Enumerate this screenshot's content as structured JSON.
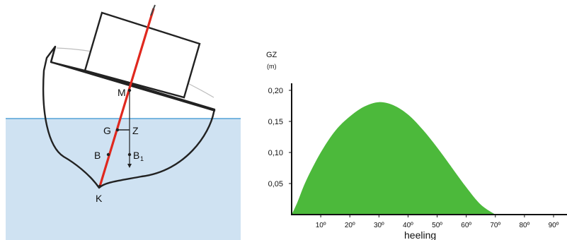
{
  "diagram": {
    "points": {
      "m": "M",
      "g": "G",
      "z": "Z",
      "b": "B",
      "b1_main": "B",
      "b1_sub": "1",
      "k": "K"
    },
    "colors": {
      "water": "#cfe2f2",
      "waterline": "#79b6df",
      "hull_stroke": "#222222",
      "centerline": "#e0281e"
    }
  },
  "chart_data": {
    "type": "area",
    "ylabel_line1": "GZ",
    "ylabel_line2": "(m)",
    "xlabel": "heeling",
    "yticks": [
      "0,20",
      "0,15",
      "0,10",
      "0,05"
    ],
    "ytick_values": [
      0.2,
      0.15,
      0.1,
      0.05
    ],
    "xticks": [
      "10º",
      "20º",
      "30º",
      "40º",
      "50º",
      "60º",
      "70º",
      "80º",
      "90º"
    ],
    "xtick_values": [
      10,
      20,
      30,
      40,
      50,
      60,
      70,
      80,
      90
    ],
    "xlim": [
      0,
      92
    ],
    "ylim": [
      0,
      0.215
    ],
    "x": [
      0,
      2,
      5,
      10,
      15,
      20,
      25,
      30,
      35,
      40,
      45,
      50,
      55,
      60,
      65,
      70
    ],
    "values": [
      0,
      0.02,
      0.055,
      0.1,
      0.135,
      0.158,
      0.174,
      0.181,
      0.176,
      0.161,
      0.137,
      0.108,
      0.076,
      0.044,
      0.016,
      0
    ],
    "fill_color": "#4cb93b"
  }
}
